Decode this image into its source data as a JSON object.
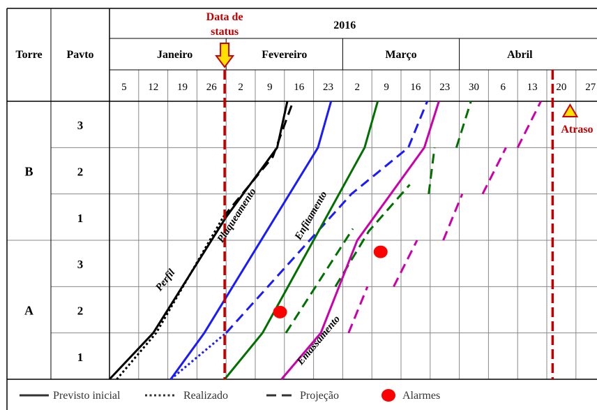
{
  "chart_data": {
    "type": "line",
    "header": {
      "col_torre": "Torre",
      "col_pavto": "Pavto",
      "year": "2016",
      "status_label_line1": "Data de",
      "status_label_line2": "status",
      "delay_label": "Atraso"
    },
    "months": [
      {
        "name": "Janeiro",
        "week_start": 0,
        "week_end": 4
      },
      {
        "name": "Fevereiro",
        "week_start": 4,
        "week_end": 8
      },
      {
        "name": "Março",
        "week_start": 8,
        "week_end": 12
      },
      {
        "name": "Abril",
        "week_start": 12,
        "week_end": 16.6
      }
    ],
    "week_ticks": [
      "5",
      "12",
      "19",
      "26",
      "2",
      "9",
      "16",
      "23",
      "2",
      "9",
      "16",
      "23",
      "30",
      "6",
      "13",
      "20",
      "27"
    ],
    "x_axis": {
      "unit": "week index",
      "min": 0,
      "max": 16.6
    },
    "y_axis": {
      "unit": "floor level (0 = start of Torre A, 6 = end of Torre B)",
      "min": 0,
      "max": 6
    },
    "rows": [
      {
        "torre": "B",
        "pavto": "3"
      },
      {
        "torre": "B",
        "pavto": "2"
      },
      {
        "torre": "B",
        "pavto": "1"
      },
      {
        "torre": "A",
        "pavto": "3"
      },
      {
        "torre": "A",
        "pavto": "2"
      },
      {
        "torre": "A",
        "pavto": "1"
      }
    ],
    "torres": [
      {
        "name": "B",
        "row_start": 0,
        "row_end": 3
      },
      {
        "name": "A",
        "row_start": 3,
        "row_end": 6
      }
    ],
    "status_date_week": 3.95,
    "delay_line_week": 15.2,
    "delay_marker_week": 15.8,
    "activity_labels": [
      {
        "text": "Perfil",
        "x": 2.0,
        "y": 2.1,
        "angle": -52
      },
      {
        "text": "Plaqueamento",
        "x": 4.45,
        "y": 3.5,
        "angle": -57
      },
      {
        "text": "Enfitamento",
        "x": 7.0,
        "y": 3.5,
        "angle": -60
      },
      {
        "text": "Emassamento",
        "x": 7.25,
        "y": 0.8,
        "angle": -50
      }
    ],
    "series": [
      {
        "name": "Perfil",
        "color": "#000000",
        "style": "solid",
        "points": [
          [
            0,
            0
          ],
          [
            1.5,
            1
          ],
          [
            4,
            3.5
          ],
          [
            5.75,
            5
          ],
          [
            6.1,
            6
          ]
        ]
      },
      {
        "name": "Perfil",
        "color": "#000000",
        "style": "dotted",
        "points": [
          [
            0.25,
            0
          ],
          [
            1.6,
            1
          ],
          [
            3.9,
            3.5
          ]
        ]
      },
      {
        "name": "Perfil",
        "color": "#000000",
        "style": "dashed",
        "points": [
          [
            3.9,
            3.5
          ],
          [
            5.6,
            4.8
          ],
          [
            6.3,
            6
          ]
        ]
      },
      {
        "name": "Plaqueamento",
        "color": "#1a1aff",
        "style": "solid",
        "points": [
          [
            2.1,
            0
          ],
          [
            3.25,
            1
          ],
          [
            7.15,
            5
          ],
          [
            7.6,
            6
          ]
        ]
      },
      {
        "name": "Plaqueamento",
        "color": "#1a1aff",
        "style": "dotted",
        "points": [
          [
            2.1,
            0
          ],
          [
            4.0,
            1
          ]
        ]
      },
      {
        "name": "Plaqueamento",
        "color": "#1a1aff",
        "style": "dashed",
        "points": [
          [
            4.0,
            1
          ],
          [
            8.3,
            4
          ],
          [
            10.25,
            5
          ],
          [
            10.9,
            6
          ]
        ]
      },
      {
        "name": "Enfitamento",
        "color": "#007000",
        "style": "solid",
        "points": [
          [
            3.95,
            0
          ],
          [
            5.25,
            1
          ],
          [
            8.75,
            5
          ],
          [
            9.2,
            6
          ]
        ]
      },
      {
        "name": "Enfitamento",
        "color": "#007000",
        "style": "dashed",
        "points": [
          [
            6.05,
            1
          ],
          [
            8.35,
            3.25
          ]
        ]
      },
      {
        "name": "Enfitamento",
        "color": "#007000",
        "style": "dashed",
        "points": [
          [
            7.75,
            2
          ],
          [
            8.9,
            3.2
          ],
          [
            10.3,
            4.2
          ]
        ]
      },
      {
        "name": "Enfitamento",
        "color": "#007000",
        "style": "dashed",
        "points": [
          [
            10.95,
            4
          ],
          [
            11.15,
            5
          ]
        ]
      },
      {
        "name": "Enfitamento",
        "color": "#007000",
        "style": "dashed",
        "points": [
          [
            11.9,
            5
          ],
          [
            12.4,
            6
          ]
        ]
      },
      {
        "name": "Emassamento",
        "color": "#cc00aa",
        "style": "solid",
        "points": [
          [
            5.9,
            0
          ],
          [
            7.25,
            1
          ],
          [
            8.5,
            3
          ],
          [
            10.8,
            5
          ],
          [
            11.3,
            6
          ]
        ]
      },
      {
        "name": "Emassamento",
        "color": "#cc00aa",
        "style": "dashed",
        "points": [
          [
            8.2,
            1
          ],
          [
            8.85,
            2
          ]
        ]
      },
      {
        "name": "Emassamento",
        "color": "#cc00aa",
        "style": "dashed",
        "points": [
          [
            9.75,
            2
          ],
          [
            10.55,
            3
          ]
        ]
      },
      {
        "name": "Emassamento",
        "color": "#cc00aa",
        "style": "dashed",
        "points": [
          [
            11.45,
            3
          ],
          [
            12.1,
            4
          ]
        ]
      },
      {
        "name": "Emassamento",
        "color": "#cc00aa",
        "style": "dashed",
        "points": [
          [
            12.8,
            4
          ],
          [
            13.6,
            5
          ]
        ]
      },
      {
        "name": "Emassamento",
        "color": "#cc00aa",
        "style": "dashed",
        "points": [
          [
            14.0,
            5
          ],
          [
            14.8,
            6
          ]
        ]
      }
    ],
    "alarms": [
      {
        "x": 5.85,
        "y": 1.45
      },
      {
        "x": 9.3,
        "y": 2.75
      }
    ],
    "legend": [
      {
        "label": "Previsto inicial",
        "kind": "solid"
      },
      {
        "label": "Realizado",
        "kind": "dotted"
      },
      {
        "label": "Projeção",
        "kind": "dashed"
      },
      {
        "label": "Alarmes",
        "kind": "dot"
      }
    ],
    "colors": {
      "grid": "#888888",
      "frame": "#000000",
      "status_line": "#c00000",
      "status_arrow_fill": "#ffe000",
      "status_arrow_stroke": "#cc0000",
      "delay_triangle_fill": "#ffe000",
      "delay_triangle_stroke": "#cc0000",
      "alarm": "#ff0000"
    }
  }
}
